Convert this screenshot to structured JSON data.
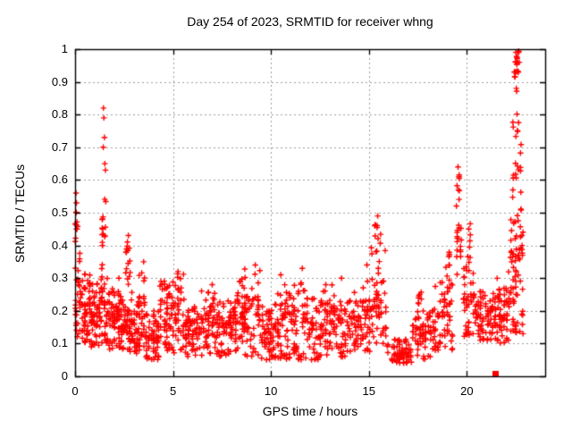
{
  "figure": {
    "background": "#ffffff",
    "border_color": "#000000",
    "grid_color": "#9e9e9e",
    "tick_label_color": "#000000"
  },
  "chart_data": {
    "type": "scatter",
    "title": "Day 254 of 2023, SRMTID for receiver whng",
    "xlabel": "GPS time / hours",
    "ylabel": "SRMTID / TECUs",
    "xlim": [
      0,
      24
    ],
    "ylim": [
      0,
      1
    ],
    "grid": true,
    "xticks": [
      0,
      5,
      10,
      15,
      20
    ],
    "xtick_labels": [
      "0",
      "5",
      "10",
      "15",
      "20"
    ],
    "yticks": [
      0,
      0.1,
      0.2,
      0.3,
      0.4,
      0.5,
      0.6,
      0.7,
      0.8,
      0.9,
      1
    ],
    "ytick_labels": [
      "0",
      "0.1",
      "0.2",
      "0.3",
      "0.4",
      "0.5",
      "0.6",
      "0.7",
      "0.8",
      "0.9",
      "1"
    ],
    "marker": "plus",
    "marker_color": "#ff0000",
    "series_name": "SRMTID",
    "bands_note": "dense scatter encoded as [t_start_h, t_end_h, v_low, v_high, n_points]",
    "bands": [
      [
        0.0,
        0.3,
        0.12,
        0.38,
        30
      ],
      [
        0.0,
        0.15,
        0.4,
        0.56,
        8
      ],
      [
        0.3,
        0.8,
        0.1,
        0.32,
        55
      ],
      [
        0.8,
        1.3,
        0.09,
        0.3,
        55
      ],
      [
        1.3,
        1.7,
        0.1,
        0.35,
        40
      ],
      [
        1.35,
        1.6,
        0.38,
        0.55,
        14
      ],
      [
        1.7,
        2.3,
        0.08,
        0.3,
        60
      ],
      [
        2.3,
        2.6,
        0.08,
        0.25,
        30
      ],
      [
        2.55,
        2.85,
        0.28,
        0.47,
        16
      ],
      [
        2.6,
        3.2,
        0.07,
        0.26,
        55
      ],
      [
        3.2,
        3.6,
        0.08,
        0.33,
        35
      ],
      [
        3.6,
        4.3,
        0.05,
        0.2,
        60
      ],
      [
        4.3,
        5.2,
        0.07,
        0.3,
        70
      ],
      [
        5.2,
        5.6,
        0.08,
        0.35,
        30
      ],
      [
        5.6,
        6.4,
        0.06,
        0.22,
        65
      ],
      [
        6.4,
        7.2,
        0.06,
        0.27,
        60
      ],
      [
        7.2,
        8.0,
        0.06,
        0.24,
        60
      ],
      [
        8.0,
        8.6,
        0.07,
        0.3,
        50
      ],
      [
        8.6,
        9.5,
        0.06,
        0.33,
        65
      ],
      [
        9.5,
        10.3,
        0.05,
        0.22,
        60
      ],
      [
        10.3,
        11.0,
        0.05,
        0.28,
        55
      ],
      [
        11.0,
        11.8,
        0.05,
        0.3,
        55
      ],
      [
        11.8,
        12.6,
        0.05,
        0.24,
        55
      ],
      [
        12.6,
        13.4,
        0.06,
        0.28,
        55
      ],
      [
        13.4,
        14.3,
        0.06,
        0.26,
        55
      ],
      [
        14.3,
        15.1,
        0.07,
        0.3,
        55
      ],
      [
        15.1,
        15.9,
        0.1,
        0.4,
        55
      ],
      [
        15.25,
        15.65,
        0.4,
        0.49,
        8
      ],
      [
        15.9,
        17.2,
        0.04,
        0.12,
        70
      ],
      [
        17.2,
        18.2,
        0.05,
        0.2,
        60
      ],
      [
        17.5,
        17.7,
        0.2,
        0.26,
        6
      ],
      [
        18.2,
        19.3,
        0.08,
        0.3,
        70
      ],
      [
        18.9,
        19.3,
        0.3,
        0.38,
        8
      ],
      [
        19.45,
        19.75,
        0.3,
        0.52,
        16
      ],
      [
        19.45,
        19.65,
        0.52,
        0.65,
        7
      ],
      [
        19.8,
        20.4,
        0.12,
        0.35,
        45
      ],
      [
        20.0,
        20.2,
        0.35,
        0.47,
        6
      ],
      [
        20.4,
        21.5,
        0.11,
        0.26,
        80
      ],
      [
        21.5,
        22.2,
        0.1,
        0.32,
        55
      ],
      [
        22.2,
        22.9,
        0.13,
        0.5,
        70
      ],
      [
        22.3,
        22.8,
        0.5,
        0.8,
        22
      ],
      [
        22.4,
        22.7,
        0.8,
        1.0,
        14
      ],
      [
        22.45,
        22.6,
        0.93,
        1.0,
        6
      ]
    ],
    "outliers": [
      [
        0.05,
        0.56
      ],
      [
        0.07,
        0.53
      ],
      [
        0.05,
        0.5
      ],
      [
        0.1,
        0.45
      ],
      [
        1.45,
        0.82
      ],
      [
        1.47,
        0.79
      ],
      [
        1.5,
        0.73
      ],
      [
        1.44,
        0.7
      ],
      [
        1.52,
        0.65
      ],
      [
        1.55,
        0.63
      ],
      [
        3.5,
        0.35
      ],
      [
        7.0,
        0.28
      ],
      [
        9.2,
        0.34
      ],
      [
        10.5,
        0.31
      ],
      [
        11.6,
        0.33
      ],
      [
        12.8,
        0.28
      ],
      [
        13.6,
        0.3
      ],
      [
        14.9,
        0.34
      ],
      [
        15.3,
        0.46
      ],
      [
        15.45,
        0.49
      ],
      [
        17.6,
        0.25
      ],
      [
        19.55,
        0.64
      ],
      [
        19.6,
        0.61
      ],
      [
        20.1,
        0.45
      ],
      [
        22.5,
        0.99
      ],
      [
        22.55,
        0.975
      ],
      [
        22.48,
        0.96
      ]
    ],
    "special_points": [
      {
        "x": 21.45,
        "y": 0.008,
        "marker": "filled-square",
        "color": "#ff0000"
      }
    ]
  }
}
